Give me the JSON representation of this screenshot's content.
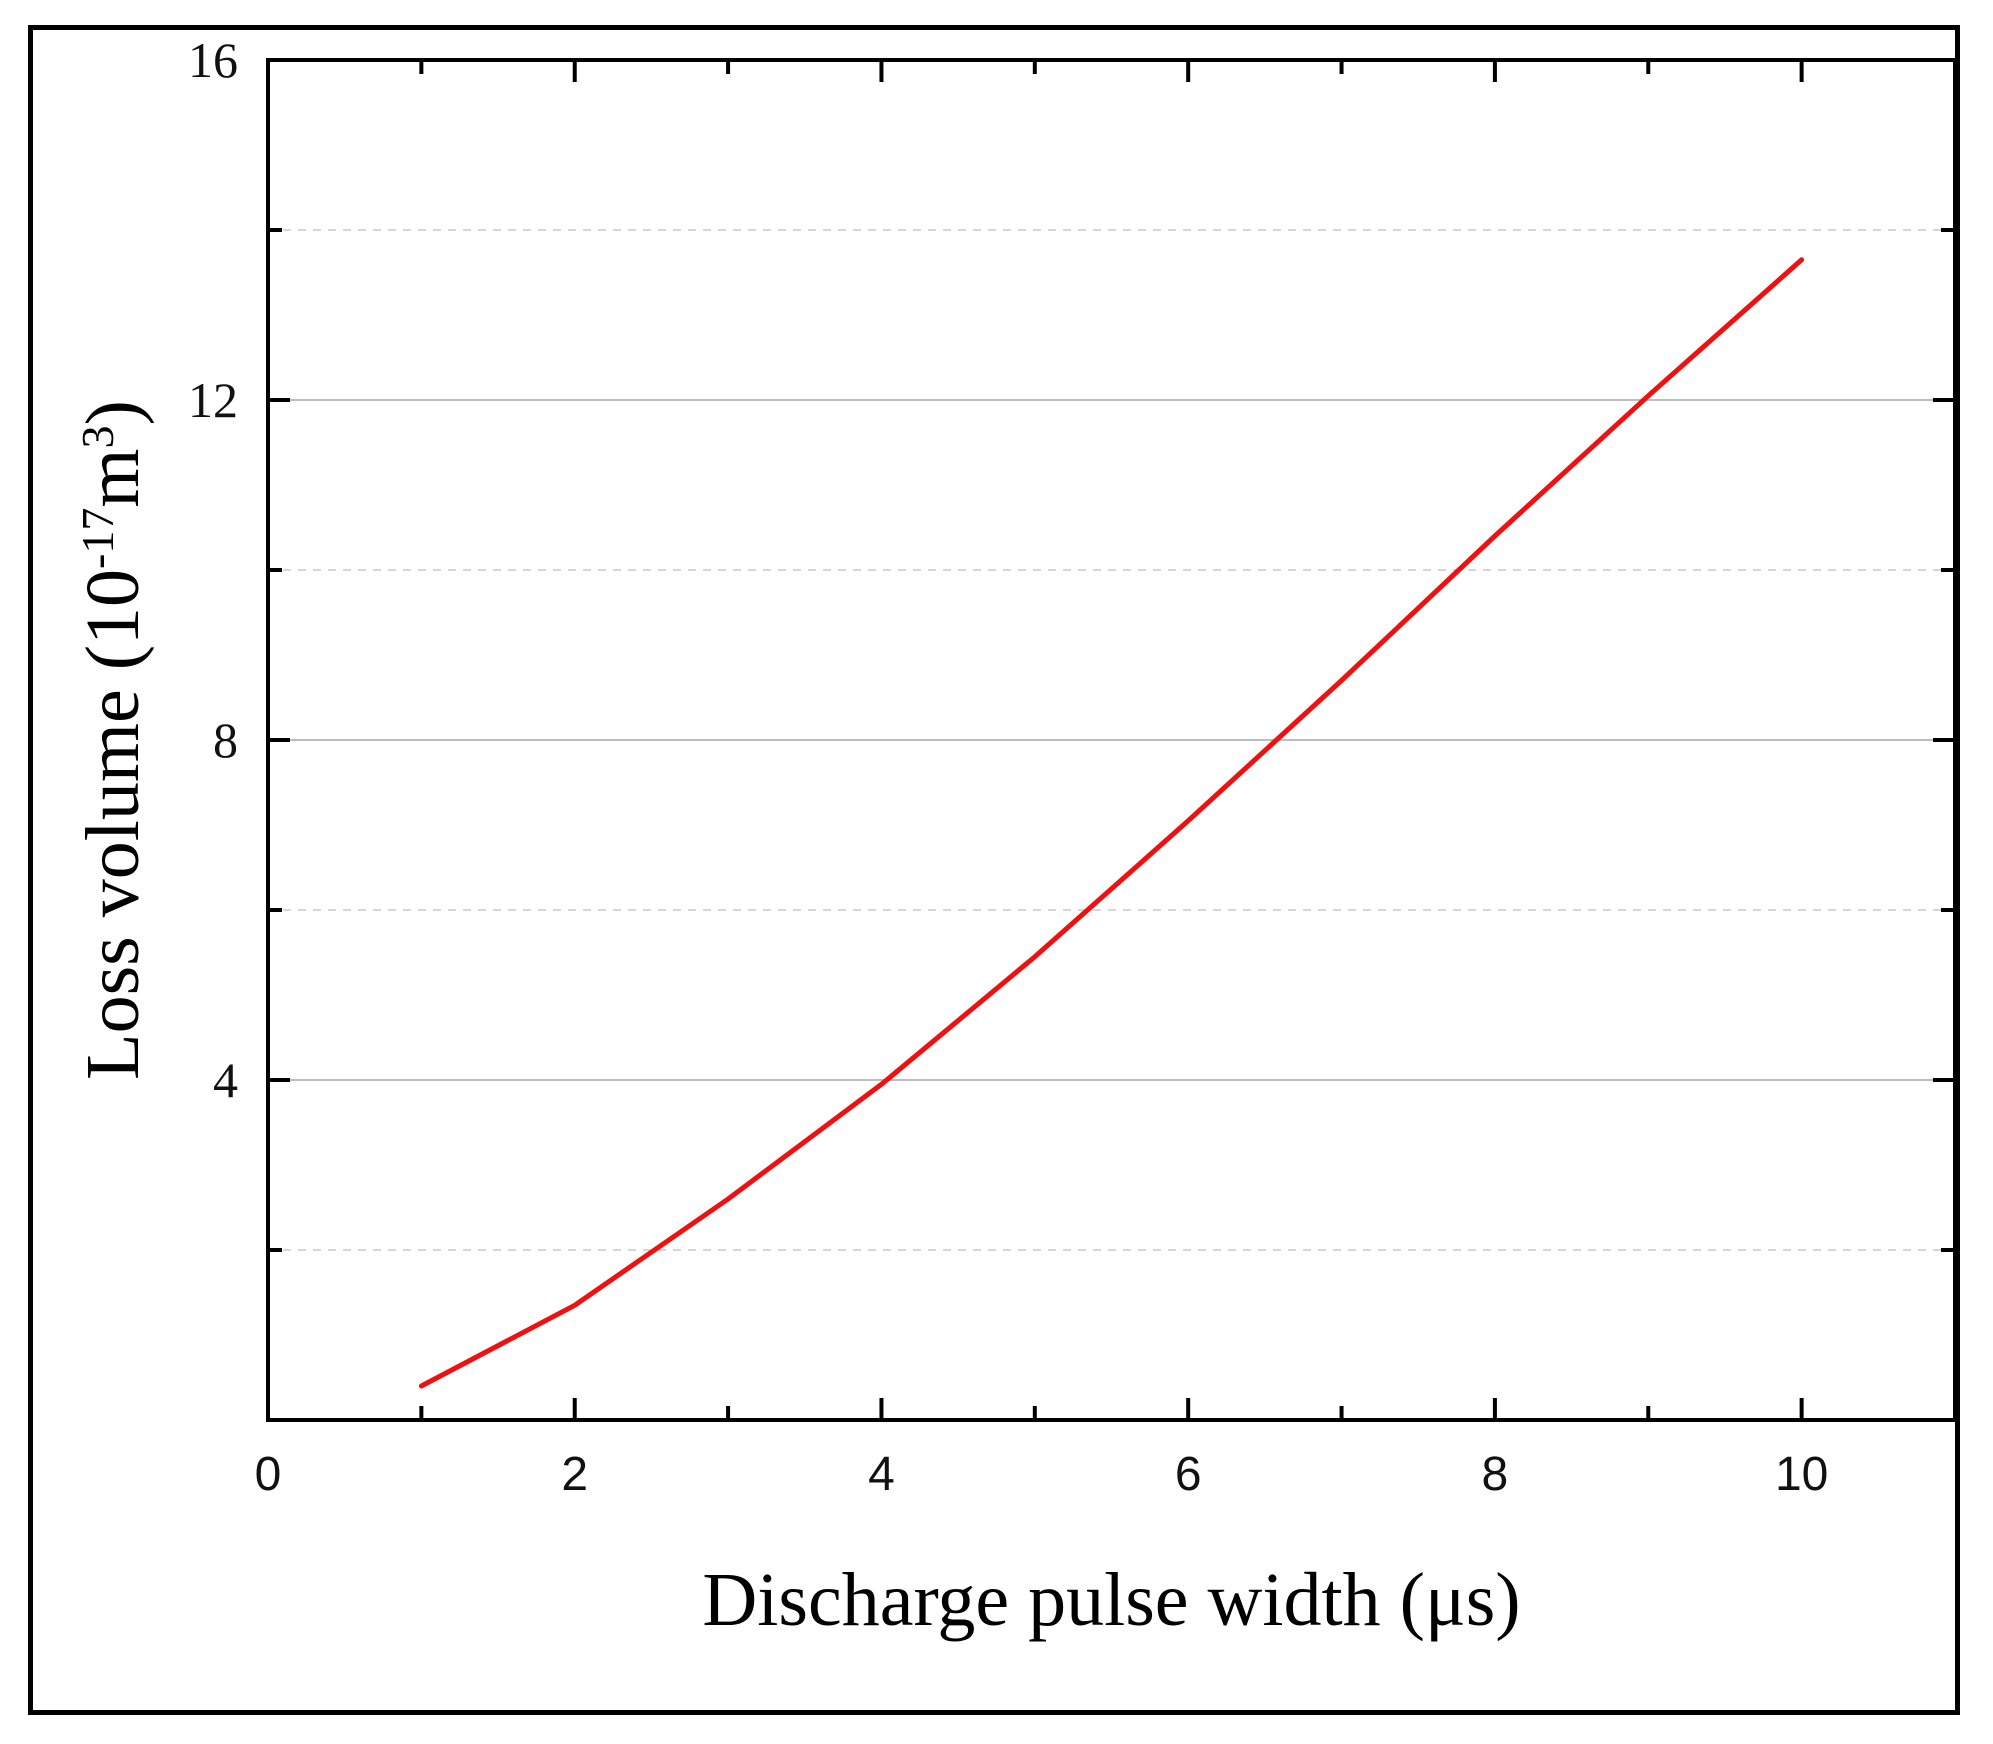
{
  "chart_data": {
    "type": "line",
    "title": "",
    "xlabel": "Discharge pulse width (μs)",
    "ylabel": {
      "base": "Loss volume (10",
      "exp": "-17",
      "unit": "m",
      "unit_exp": "3",
      "close": ")"
    },
    "xlim": [
      0,
      11
    ],
    "ylim": [
      0,
      16
    ],
    "xticks": [
      0,
      2,
      4,
      6,
      8,
      10
    ],
    "xtick_labels": [
      "0",
      "2",
      "4",
      "6",
      "8",
      "10"
    ],
    "yticks": [
      4,
      8,
      12,
      16
    ],
    "ytick_labels": [
      "4",
      "8",
      "12",
      "16"
    ],
    "grid": "horizontal",
    "series": [
      {
        "color": "#ee1111",
        "x": [
          1,
          2,
          3,
          4,
          5,
          6,
          7,
          8,
          9,
          10
        ],
        "y": [
          0.4,
          1.35,
          2.6,
          3.95,
          5.45,
          7.05,
          8.7,
          10.4,
          12.05,
          13.65
        ]
      }
    ]
  }
}
